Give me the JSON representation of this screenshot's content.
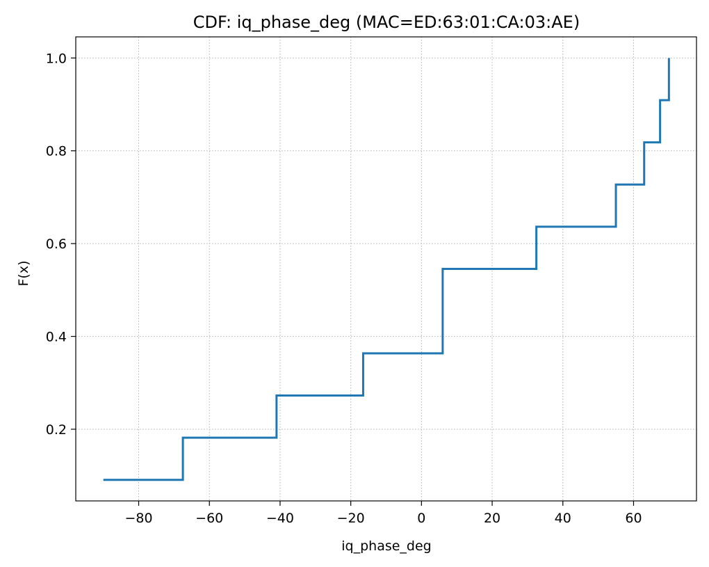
{
  "chart_data": {
    "type": "line",
    "drawstyle": "steps-post",
    "title": "CDF: iq_phase_deg (MAC=ED:63:01:CA:03:AE)",
    "xlabel": "iq_phase_deg",
    "ylabel": "F(x)",
    "xlim": [
      -97.8,
      77.8
    ],
    "ylim": [
      0.0455,
      1.0455
    ],
    "xticks": [
      -80,
      -60,
      -40,
      -20,
      0,
      20,
      40,
      60
    ],
    "xtick_labels": [
      "−80",
      "−60",
      "−40",
      "−20",
      "0",
      "20",
      "40",
      "60"
    ],
    "yticks": [
      0.2,
      0.4,
      0.6,
      0.8,
      1.0
    ],
    "ytick_labels": [
      "0.2",
      "0.4",
      "0.6",
      "0.8",
      "1.0"
    ],
    "grid": true,
    "legend": "none",
    "series": [
      {
        "color": "#1f77b4",
        "x": [
          -90,
          -67.5,
          -41,
          -16.5,
          6,
          32.5,
          55,
          63,
          67.5,
          70
        ],
        "y": [
          0.0909,
          0.1818,
          0.2727,
          0.3636,
          0.5455,
          0.6364,
          0.7273,
          0.8182,
          0.9091,
          1.0
        ]
      }
    ]
  }
}
